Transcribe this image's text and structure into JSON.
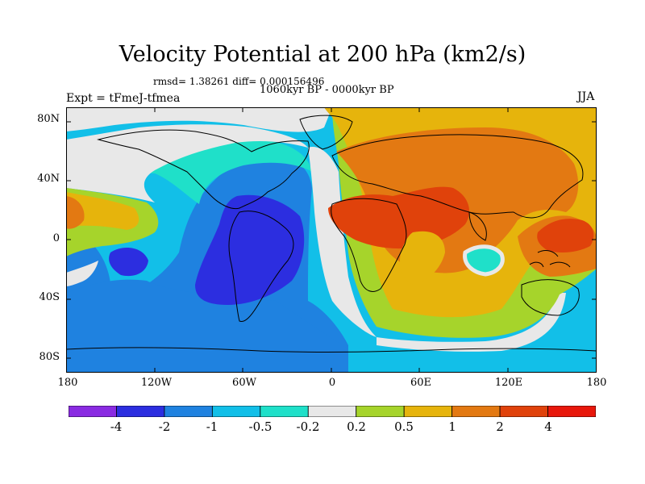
{
  "title": "Velocity Potential at 200 hPa (km2/s)",
  "stats": "rmsd= 1.38261 diff= 0.000156496",
  "period": "1060kyr BP - 0000kyr BP",
  "experiment": "Expt = tFmeJ-tfmea",
  "season": "JJA",
  "lat_labels": [
    "80N",
    "40N",
    "0",
    "40S",
    "80S"
  ],
  "lon_labels": [
    "180",
    "120W",
    "60W",
    "0",
    "60E",
    "120E",
    "180"
  ],
  "colorbar": {
    "labels": [
      "-4",
      "-2",
      "-1",
      "-0.5",
      "-0.2",
      "0.2",
      "0.5",
      "1",
      "2",
      "4"
    ],
    "colors": [
      "#8a2be2",
      "#2c2ee0",
      "#1f82e0",
      "#12bfe8",
      "#1fe0c9",
      "#e8e8e8",
      "#a6d42b",
      "#e6b40c",
      "#e37912",
      "#e0420b",
      "#e8170b"
    ]
  }
}
